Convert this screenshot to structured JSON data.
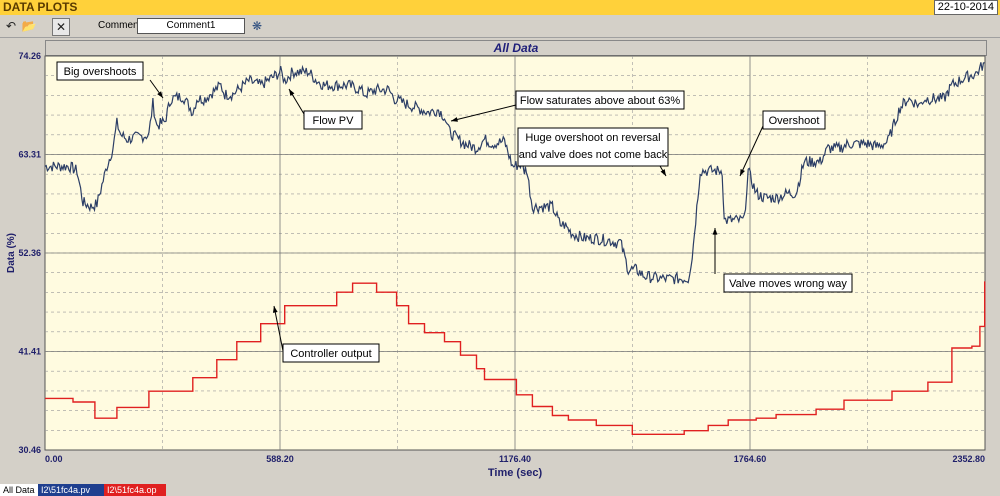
{
  "window": {
    "title": "DATA PLOTS",
    "date": "22-10-2014"
  },
  "toolbar": {
    "undo_icon": "undo-icon",
    "open_icon": "open-folder-icon",
    "close_icon": "close-x-icon",
    "settings_icon": "gear-icon",
    "comment_label": "Comment",
    "comment_value": "Comment1"
  },
  "header": {
    "title": "All Data"
  },
  "tabs": [
    {
      "label": "All Data",
      "color": "#ffffff"
    },
    {
      "label": "I2\\51fc4a.pv",
      "color": "#1f3f8f"
    },
    {
      "label": "I2\\51fc4a.op",
      "color": "#e02020"
    }
  ],
  "colors": {
    "plot_bg": "#fffbe0",
    "pv": "#2c3e66",
    "op": "#e02020",
    "grid": "#9a9a9a"
  },
  "chart_data": {
    "type": "line",
    "xlabel": "Time (sec)",
    "ylabel": "Data (%)",
    "xlim": [
      0,
      2352.8
    ],
    "ylim": [
      30.46,
      74.26
    ],
    "xticks": [
      "0.00",
      "588.20",
      "1176.40",
      "1764.60",
      "2352.80"
    ],
    "yticks": [
      "30.46",
      "41.41",
      "52.36",
      "63.31",
      "74.26"
    ],
    "grid": true,
    "series": [
      {
        "name": "I2\\51fc4a.pv",
        "color": "#2c3e66",
        "noise": true,
        "x": [
          0,
          60,
          80,
          95,
          115,
          130,
          155,
          170,
          180,
          190,
          205,
          260,
          270,
          280,
          300,
          315,
          345,
          370,
          380,
          400,
          440,
          450,
          470,
          510,
          540,
          590,
          600,
          620,
          660,
          680,
          700,
          730,
          760,
          790,
          800,
          830,
          860,
          875,
          900,
          960,
          985,
          1000,
          1010,
          1020,
          1050,
          1080,
          1100,
          1120,
          1150,
          1170,
          1190,
          1200,
          1205,
          1220,
          1270,
          1290,
          1300,
          1320,
          1350,
          1380,
          1400,
          1410,
          1430,
          1440,
          1460,
          1480,
          1500,
          1540,
          1550,
          1560,
          1600,
          1610,
          1620,
          1640,
          1650,
          1660,
          1670,
          1680,
          1695,
          1700,
          1710,
          1730,
          1740,
          1750,
          1760,
          1780,
          1800,
          1830,
          1860,
          1880,
          1900,
          1920,
          1940,
          1960,
          1990,
          2010,
          2040,
          2060,
          2080,
          2100,
          2110,
          2140,
          2160,
          2190,
          2200,
          2250,
          2270,
          2300,
          2330,
          2352
        ],
        "y": [
          62,
          62,
          61.5,
          58,
          57.5,
          57.8,
          62,
          64,
          66.8,
          65.5,
          65,
          65.5,
          69,
          66.5,
          67,
          69.5,
          69.8,
          68,
          69.5,
          69.5,
          71,
          70,
          70,
          71.5,
          71,
          72.5,
          71.5,
          72.5,
          72.5,
          71.5,
          71,
          71,
          71,
          70.5,
          70,
          70.5,
          70.5,
          69.5,
          69,
          68,
          68.3,
          67.5,
          66,
          65.5,
          64.5,
          64,
          65,
          64.5,
          64.8,
          62,
          62.2,
          61.5,
          61.8,
          57.5,
          57.5,
          55.5,
          55.5,
          54.5,
          54,
          54,
          53.8,
          53.8,
          53.5,
          53.6,
          50.5,
          50.5,
          49.8,
          49.5,
          49.5,
          49.5,
          49.5,
          49.5,
          52,
          61.5,
          61.5,
          61.5,
          61.5,
          61.5,
          61.5,
          56,
          56,
          56,
          56,
          56,
          61.5,
          59,
          58.5,
          58.5,
          59,
          59,
          62.5,
          62.5,
          62.5,
          64,
          64,
          64.5,
          64.5,
          64.5,
          64.2,
          64.5,
          64.8,
          68.5,
          69.5,
          68.8,
          69.5,
          69.5,
          71,
          71.8,
          72.3,
          73.5
        ]
      },
      {
        "name": "I2\\51fc4a.op",
        "color": "#e02020",
        "noise": false,
        "x": [
          0,
          30,
          70,
          125,
          180,
          260,
          370,
          430,
          480,
          540,
          600,
          680,
          730,
          770,
          830,
          880,
          910,
          950,
          1000,
          1040,
          1080,
          1100,
          1150,
          1180,
          1220,
          1270,
          1310,
          1380,
          1470,
          1540,
          1600,
          1660,
          1710,
          1780,
          1830,
          1930,
          2000,
          2120,
          2210,
          2270,
          2320,
          2340,
          2352
        ],
        "y": [
          36.2,
          36.2,
          35.8,
          34,
          35.2,
          37,
          38.5,
          40.5,
          42.5,
          44.5,
          46.5,
          46.5,
          48,
          49,
          48,
          46.5,
          44.5,
          43.5,
          42.5,
          41,
          39.5,
          38.3,
          38.3,
          36.6,
          35.3,
          34.3,
          33.8,
          33.2,
          32.2,
          32.2,
          32.6,
          33.2,
          33.8,
          34,
          34.4,
          35,
          36,
          37,
          38,
          41.8,
          42,
          44.2,
          49.2
        ]
      }
    ],
    "annotations": [
      {
        "text": "Big overshoots",
        "x": 280,
        "y": 68.3
      },
      {
        "text": "Flow PV",
        "x": 600,
        "y": 70
      },
      {
        "text": "Flow saturates above about 63%",
        "x": 1000,
        "y": 66.6
      },
      {
        "text": "Huge overshoot on reversal",
        "text2": "and valve does not come back",
        "x": 1525,
        "y": 59.8
      },
      {
        "text": "Overshoot",
        "x": 1705,
        "y": 59.8
      },
      {
        "text": "Valve moves wrong way",
        "x": 1650,
        "y": 54.8
      },
      {
        "text": "Controller output",
        "x": 564,
        "y": 46.6
      }
    ]
  }
}
